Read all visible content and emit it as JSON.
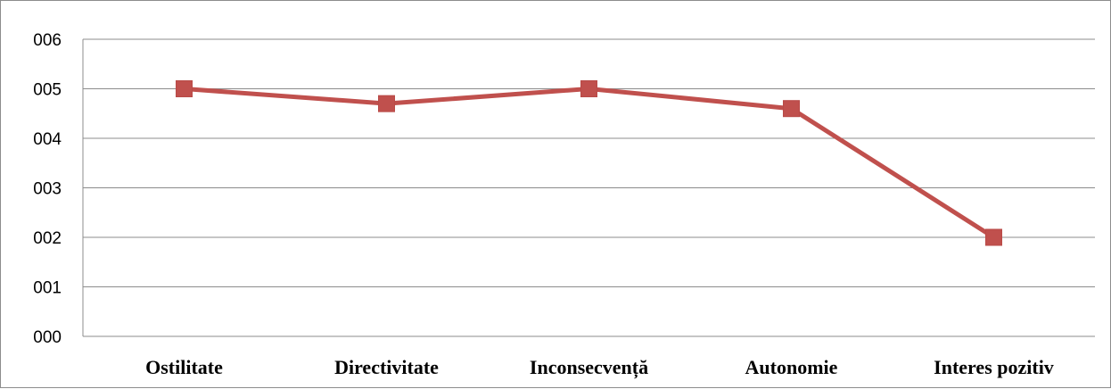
{
  "chart_data": {
    "type": "line",
    "title": "",
    "xlabel": "",
    "ylabel": "",
    "categories": [
      "Ostilitate",
      "Directivitate",
      "Inconsecvență",
      "Autonomie",
      "Interes pozitiv"
    ],
    "series": [
      {
        "values": [
          5.0,
          4.7,
          5.0,
          4.6,
          2.0
        ]
      }
    ],
    "ylim": [
      0,
      6
    ],
    "yticks": [
      "000",
      "001",
      "002",
      "003",
      "004",
      "005",
      "006"
    ],
    "grid": true,
    "legend": "none",
    "series_color": "#c0504d",
    "grid_color": "#8c8c8c"
  }
}
